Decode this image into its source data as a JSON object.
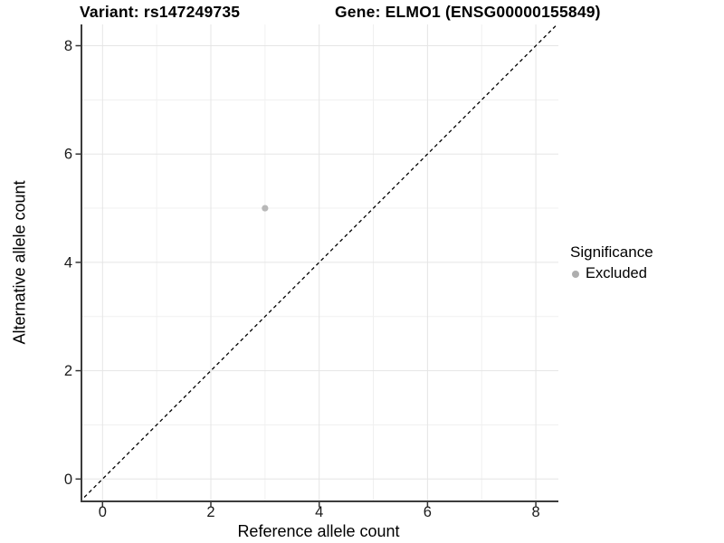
{
  "chart_data": {
    "type": "scatter",
    "title_left": "Variant: rs147249735",
    "title_right": "Gene: ELMO1 (ENSG00000155849)",
    "xlabel": "Reference allele count",
    "ylabel": "Alternative allele count",
    "xlim": [
      -0.4,
      8.42
    ],
    "ylim": [
      -0.4,
      8.42
    ],
    "x_major_ticks": [
      0,
      2,
      4,
      6,
      8
    ],
    "x_minor_ticks": [
      1,
      3,
      5,
      7
    ],
    "y_major_ticks": [
      0,
      2,
      4,
      6,
      8
    ],
    "y_minor_ticks": [
      1,
      3,
      5,
      7
    ],
    "grid": true,
    "legend_position": "right",
    "reference_line": {
      "equation": "y = x",
      "style": "dashed",
      "color": "#000000"
    },
    "series": [
      {
        "name": "Excluded",
        "color": "#b8b8b8",
        "points": [
          {
            "x": 3,
            "y": 5
          }
        ]
      }
    ],
    "legend": {
      "title": "Significance",
      "items": [
        {
          "label": "Excluded",
          "color": "#aeaeae"
        }
      ]
    }
  },
  "colors": {
    "background": "#ffffff",
    "axis_line": "#3c3c3c",
    "tick_mark": "#333333",
    "tick_label": "#1a1a1a",
    "grid_major": "#e5e5e5",
    "grid_minor": "#f0f0f0",
    "point": "#b8b8b8",
    "legend_key": "#aeaeae"
  }
}
